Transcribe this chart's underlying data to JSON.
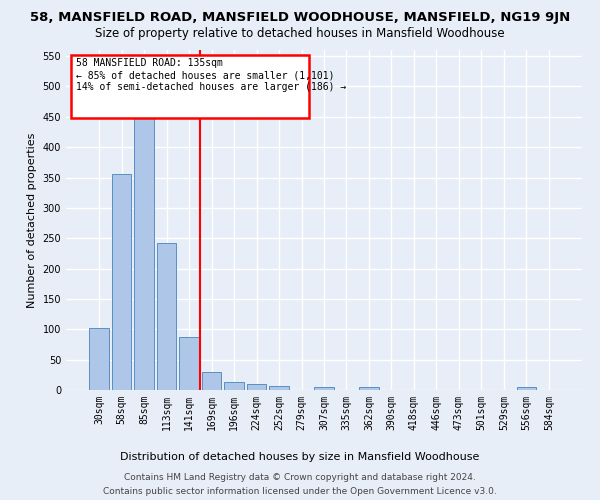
{
  "title": "58, MANSFIELD ROAD, MANSFIELD WOODHOUSE, MANSFIELD, NG19 9JN",
  "subtitle": "Size of property relative to detached houses in Mansfield Woodhouse",
  "xlabel": "Distribution of detached houses by size in Mansfield Woodhouse",
  "ylabel": "Number of detached properties",
  "footer_line1": "Contains HM Land Registry data © Crown copyright and database right 2024.",
  "footer_line2": "Contains public sector information licensed under the Open Government Licence v3.0.",
  "categories": [
    "30sqm",
    "58sqm",
    "85sqm",
    "113sqm",
    "141sqm",
    "169sqm",
    "196sqm",
    "224sqm",
    "252sqm",
    "279sqm",
    "307sqm",
    "335sqm",
    "362sqm",
    "390sqm",
    "418sqm",
    "446sqm",
    "473sqm",
    "501sqm",
    "529sqm",
    "556sqm",
    "584sqm"
  ],
  "values": [
    102,
    355,
    448,
    242,
    88,
    30,
    14,
    10,
    6,
    0,
    5,
    0,
    5,
    0,
    0,
    0,
    0,
    0,
    0,
    5,
    0
  ],
  "bar_color": "#aec6e8",
  "bar_edge_color": "#5a8fc2",
  "vline_x": 4.5,
  "vline_color": "red",
  "annotation_line1": "58 MANSFIELD ROAD: 135sqm",
  "annotation_line2": "← 85% of detached houses are smaller (1,101)",
  "annotation_line3": "14% of semi-detached houses are larger (186) →",
  "ylim": [
    0,
    560
  ],
  "yticks": [
    0,
    50,
    100,
    150,
    200,
    250,
    300,
    350,
    400,
    450,
    500,
    550
  ],
  "background_color": "#e8eef7",
  "grid_color": "#ffffff",
  "title_fontsize": 9.5,
  "subtitle_fontsize": 8.5,
  "axis_label_fontsize": 8,
  "tick_fontsize": 7,
  "footer_fontsize": 6.5
}
